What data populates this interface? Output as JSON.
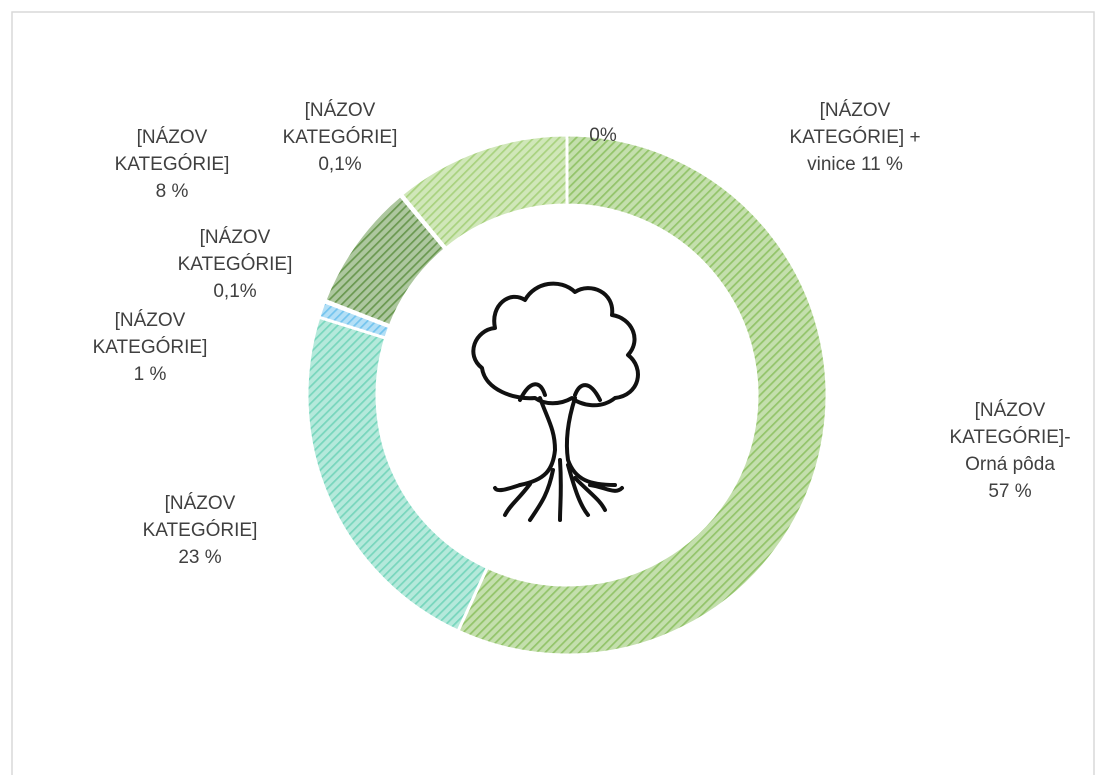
{
  "chart_data": {
    "type": "donut",
    "categories": [
      "[NÁZOV KATEGÓRIE]- Orná pôda",
      "[NÁZOV KATEGÓRIE]",
      "[NÁZOV KATEGÓRIE]",
      "[NÁZOV KATEGÓRIE]",
      "[NÁZOV KATEGÓRIE]",
      "[NÁZOV KATEGÓRIE]",
      null,
      "[NÁZOV KATEGÓRIE] + vinice"
    ],
    "values": [
      57,
      23,
      1,
      0.1,
      8,
      0.1,
      0,
      11
    ],
    "value_labels": [
      "57 %",
      "23 %",
      "1 %",
      "0,1%",
      "8 %",
      "0,1%",
      "0%",
      "11 %"
    ],
    "colors": [
      "#93c46a",
      "#78d6bd",
      "#74c4ee",
      "#9fd3ee",
      "#6a9850",
      "#8aa8a0",
      "#4e9a8a",
      "#a9d27f"
    ]
  }
}
